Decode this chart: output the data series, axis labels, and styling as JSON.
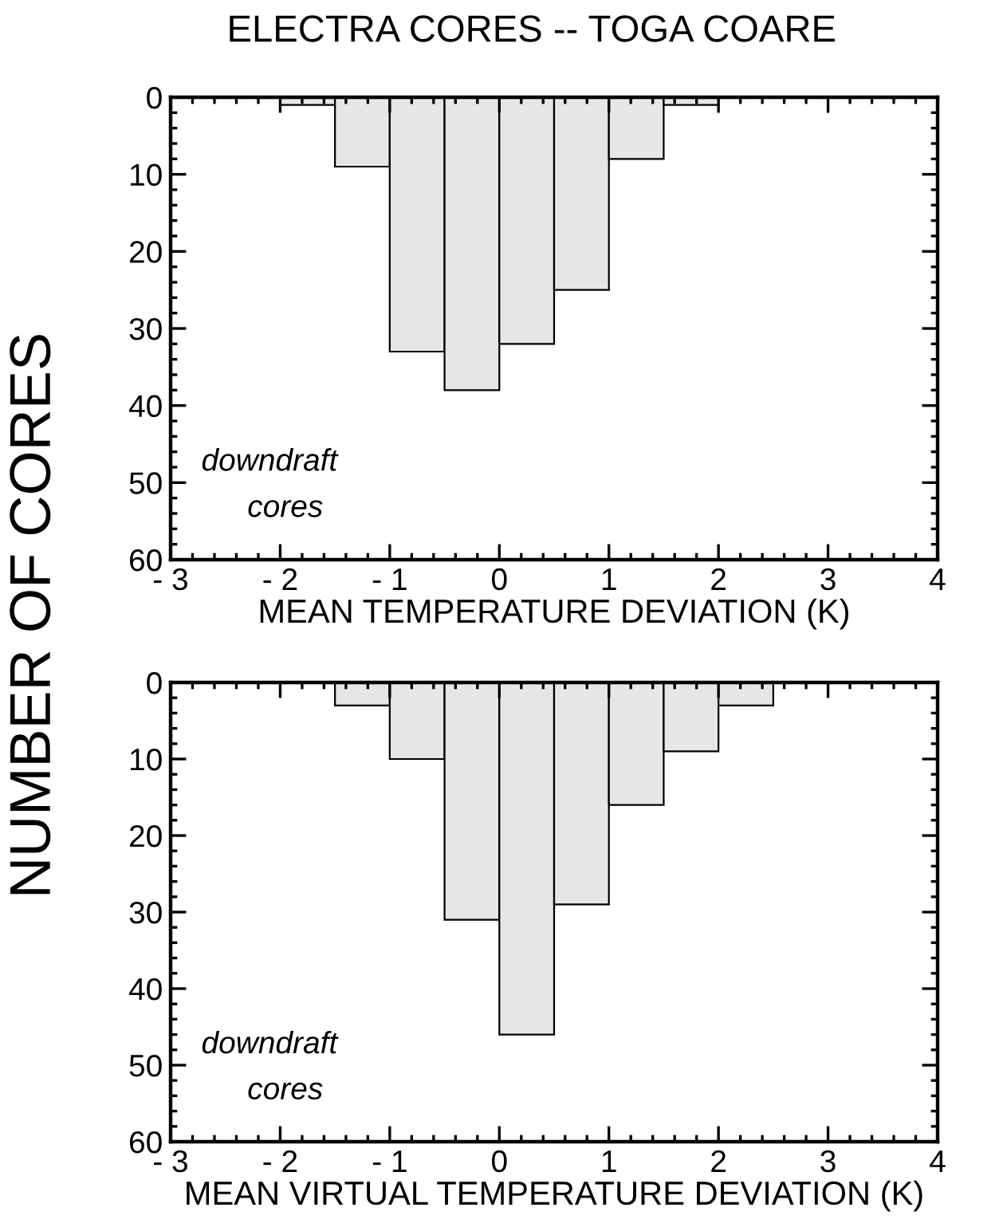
{
  "chart_data": [
    {
      "type": "histogram",
      "title": "ELECTRA CORES -- TOGA COARE",
      "ylabel": "NUMBER OF CORES",
      "xlabel": "MEAN TEMPERATURE DEVIATION (K)",
      "bins": [
        -2,
        -1.5,
        -1,
        -0.5,
        0,
        0.5,
        1,
        1.5,
        2
      ],
      "values": [
        1,
        9,
        33,
        38,
        32,
        25,
        8,
        1
      ],
      "color": "#e6e6e6",
      "xlim": [
        -3,
        4
      ],
      "xticks": [
        {
          "value": -3,
          "label": "- 3"
        },
        {
          "value": -2,
          "label": "- 2"
        },
        {
          "value": -1,
          "label": "- 1"
        },
        0,
        1,
        2,
        3,
        4
      ],
      "ylim": [
        60,
        0
      ],
      "yticks": [
        0,
        10,
        20,
        30,
        40,
        50,
        60
      ],
      "grid": false,
      "annotations": [
        "downdraft",
        "cores"
      ]
    },
    {
      "type": "histogram",
      "xlabel": "MEAN VIRTUAL TEMPERATURE DEVIATION (K)",
      "bins": [
        -1.5,
        -1,
        -0.5,
        0,
        0.5,
        1,
        1.5,
        2,
        2.5
      ],
      "values": [
        3,
        10,
        31,
        46,
        29,
        16,
        9,
        3
      ],
      "color": "#e6e6e6",
      "xlim": [
        -3,
        4
      ],
      "xticks": [
        {
          "value": -3,
          "label": "- 3"
        },
        {
          "value": -2,
          "label": "- 2"
        },
        {
          "value": -1,
          "label": "- 1"
        },
        0,
        1,
        2,
        3,
        4
      ],
      "ylim": [
        60,
        0
      ],
      "yticks": [
        0,
        10,
        20,
        30,
        40,
        50,
        60
      ],
      "grid": false,
      "annotations": [
        "downdraft",
        "cores"
      ]
    }
  ]
}
